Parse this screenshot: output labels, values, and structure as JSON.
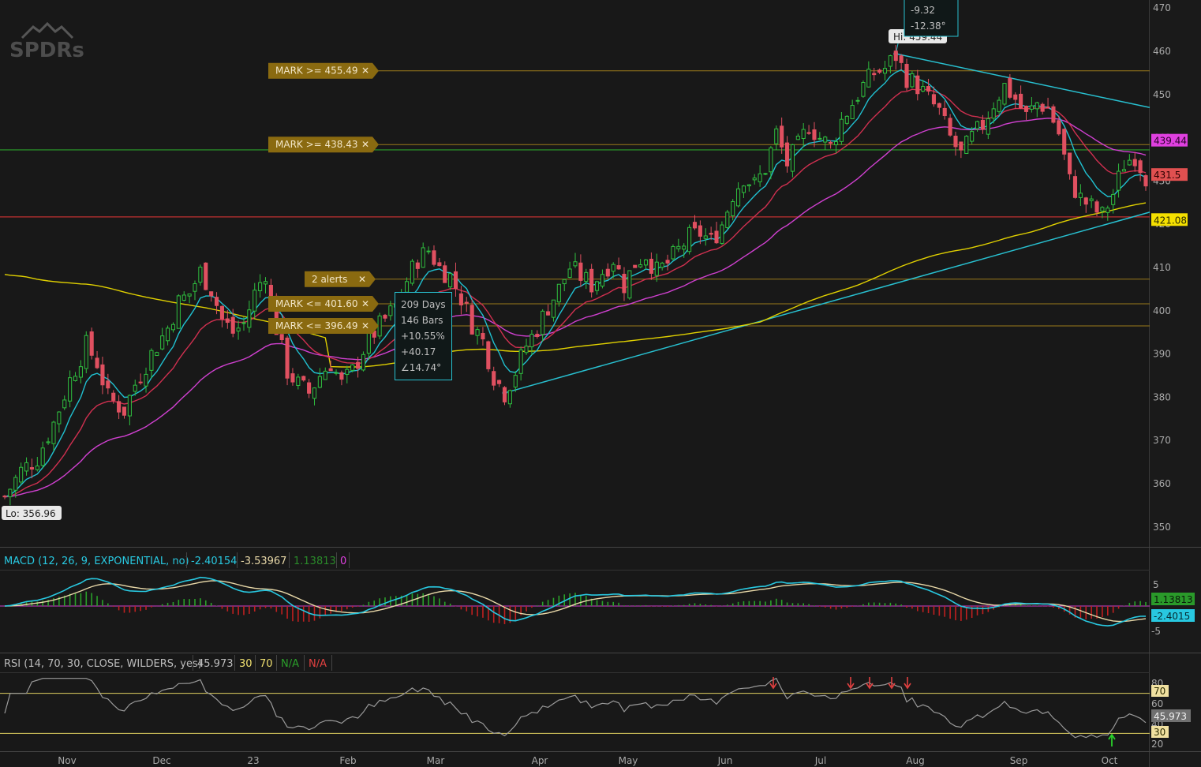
{
  "logo": "SPDRs",
  "price_panel": {
    "y_ticks": [
      470,
      460,
      450,
      440,
      430,
      420,
      410,
      400,
      390,
      380,
      370,
      360,
      350
    ],
    "hi_label": "Hi: 459.44",
    "lo_label": "Lo: 356.96",
    "measure_box": [
      "209 Days",
      "146 Bars",
      "+10.55%",
      "+40.17",
      "∠14.74°"
    ],
    "top_box": [
      "-9.32",
      "-12.38°"
    ],
    "alerts": [
      {
        "label": "MARK >= 455.49",
        "price": 455.49
      },
      {
        "label": "MARK >= 438.43",
        "price": 438.43
      },
      {
        "label": "2 alerts",
        "price": 407.3
      },
      {
        "label": "MARK <= 401.60",
        "price": 401.6
      },
      {
        "label": "MARK <= 396.49",
        "price": 396.49
      }
    ],
    "price_badges": [
      {
        "value": "439.44",
        "price": 439.44,
        "color": "#e040e0",
        "text_color": "#2a002a"
      },
      {
        "value": "431.5",
        "price": 431.5,
        "color": "#e05050",
        "text_color": "#2a0000"
      },
      {
        "value": "421.08",
        "price": 421.08,
        "color": "#f5e000",
        "text_color": "#2a2a00"
      }
    ],
    "horizontal_lines": [
      {
        "price": 437.2,
        "color": "#2aa02a"
      },
      {
        "price": 421.7,
        "color": "#c03030"
      }
    ]
  },
  "x_axis": {
    "labels": [
      "Nov",
      "Dec",
      "23",
      "Feb",
      "Mar",
      "Apr",
      "May",
      "Jun",
      "Jul",
      "Aug",
      "Sep",
      "Oct"
    ]
  },
  "macd": {
    "header": "MACD (12, 26, 9, EXPONENTIAL, no)",
    "value": "-2.40154",
    "avg": "-3.53967",
    "diff": "1.13813",
    "zero": "0",
    "y_ticks": [
      "5",
      "-5"
    ],
    "badge_diff": "1.13813",
    "badge_value": "-2.4015"
  },
  "rsi": {
    "header": "RSI (14, 70, 30, CLOSE, WILDERS, yes)",
    "value": "45.973",
    "ob": "30",
    "os": "70",
    "na1": "N/A",
    "na2": "N/A",
    "y_ticks": [
      "80",
      "60",
      "40",
      "20"
    ],
    "badge_70": "70",
    "badge_value": "45.973",
    "badge_30": "30"
  },
  "chart_data": {
    "type": "candlestick",
    "symbol_style": "SPY daily",
    "x": [
      "Nov",
      "Dec",
      "23",
      "Feb",
      "Mar",
      "Apr",
      "May",
      "Jun",
      "Jul",
      "Aug",
      "Sep",
      "Oct"
    ],
    "ylim": [
      345,
      472
    ],
    "close_path": [
      [
        365,
        357
      ],
      [
        368,
        363
      ],
      [
        371,
        366
      ],
      [
        374,
        374
      ],
      [
        377,
        384
      ],
      [
        380,
        392
      ],
      [
        382,
        388
      ],
      [
        384,
        380
      ],
      [
        387,
        377
      ],
      [
        389,
        383
      ],
      [
        392,
        390
      ],
      [
        395,
        396
      ],
      [
        397,
        402
      ],
      [
        399,
        404
      ],
      [
        401,
        409
      ],
      [
        403,
        405
      ],
      [
        405,
        398
      ],
      [
        407,
        395
      ],
      [
        409,
        397
      ],
      [
        411,
        404
      ],
      [
        413,
        409
      ],
      [
        415,
        396
      ],
      [
        417,
        386
      ],
      [
        419,
        383
      ],
      [
        421,
        381
      ],
      [
        423,
        385
      ],
      [
        425,
        388
      ],
      [
        427,
        383
      ],
      [
        429,
        386
      ],
      [
        431,
        391
      ],
      [
        433,
        395
      ],
      [
        435,
        398
      ],
      [
        437,
        401
      ],
      [
        439,
        407
      ],
      [
        441,
        412
      ],
      [
        443,
        414
      ],
      [
        445,
        410
      ],
      [
        447,
        408
      ],
      [
        449,
        403
      ],
      [
        451,
        397
      ],
      [
        453,
        393
      ],
      [
        455,
        385
      ],
      [
        457,
        381
      ],
      [
        459,
        386
      ],
      [
        461,
        392
      ],
      [
        463,
        396
      ],
      [
        465,
        401
      ],
      [
        467,
        405
      ],
      [
        469,
        410
      ],
      [
        471,
        408
      ],
      [
        473,
        406
      ],
      [
        475,
        409
      ],
      [
        477,
        412
      ],
      [
        479,
        406
      ],
      [
        481,
        411
      ],
      [
        483,
        413
      ],
      [
        485,
        409
      ],
      [
        487,
        411
      ],
      [
        489,
        414
      ],
      [
        491,
        417
      ],
      [
        493,
        418
      ],
      [
        495,
        416
      ],
      [
        497,
        420
      ],
      [
        499,
        427
      ],
      [
        501,
        431
      ],
      [
        503,
        429
      ],
      [
        505,
        433
      ],
      [
        507,
        441
      ],
      [
        509,
        434
      ],
      [
        511,
        438
      ],
      [
        513,
        443
      ],
      [
        515,
        440
      ],
      [
        517,
        438
      ],
      [
        519,
        444
      ],
      [
        521,
        448
      ],
      [
        523,
        452
      ],
      [
        525,
        455
      ],
      [
        527,
        456
      ],
      [
        529,
        459
      ],
      [
        531,
        454
      ],
      [
        533,
        452
      ],
      [
        535,
        449
      ],
      [
        537,
        446
      ],
      [
        539,
        440
      ],
      [
        541,
        436
      ],
      [
        543,
        440
      ],
      [
        545,
        443
      ],
      [
        547,
        448
      ],
      [
        549,
        452
      ],
      [
        551,
        449
      ],
      [
        553,
        445
      ],
      [
        555,
        448
      ],
      [
        557,
        447
      ],
      [
        559,
        441
      ],
      [
        561,
        430
      ],
      [
        563,
        426
      ],
      [
        565,
        424
      ],
      [
        567,
        422
      ],
      [
        569,
        427
      ],
      [
        571,
        434
      ],
      [
        573,
        436
      ],
      [
        575,
        431
      ]
    ],
    "moving_averages": [
      {
        "name": "200-day",
        "color": "#e0d000"
      },
      {
        "name": "50-day",
        "color": "#d040d0"
      },
      {
        "name": "20-day",
        "color": "#d03050"
      },
      {
        "name": "9-day",
        "color": "#20c0d0"
      }
    ],
    "macd_value": -2.40154,
    "macd_avg": -3.53967,
    "macd_diff": 1.13813,
    "rsi_value": 45.973
  }
}
